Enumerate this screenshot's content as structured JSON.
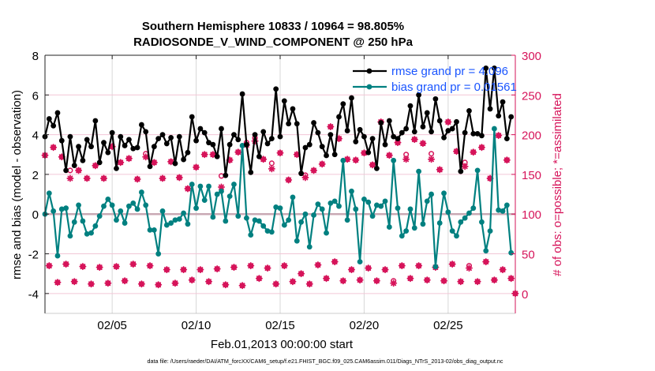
{
  "chart_data": {
    "type": "line",
    "title": [
      "Southern Hemisphere 10833 / 10964 = 98.805%",
      "RADIOSONDE_V_WIND_COMPONENT @ 250 hPa"
    ],
    "xlabel": "Feb.01,2013 00:00:00 start",
    "ylabel_left": "rmse and bias (model - observation)",
    "ylabel_right": "# of obs: o=possible; *=assimilated",
    "footer": "data file: /Users/raeder/DAI/ATM_forcXX/CAM6_setup/f.e21.FHIST_BGC.f09_025.CAM6assim.011/Diags_NTrS_2013-02/obs_diag_output.nc",
    "x_start_day": 1,
    "x_step_days": 0.25,
    "xlim_days": [
      1,
      29
    ],
    "xticks": [
      {
        "day": 5,
        "label": "02/05"
      },
      {
        "day": 10,
        "label": "02/10"
      },
      {
        "day": 15,
        "label": "02/15"
      },
      {
        "day": 20,
        "label": "02/20"
      },
      {
        "day": 25,
        "label": "02/25"
      }
    ],
    "ylim_left": [
      -5,
      8
    ],
    "yticks_left": [
      -4,
      -2,
      0,
      2,
      4,
      6,
      8
    ],
    "ylim_right": [
      -25,
      300
    ],
    "yticks_right": [
      0,
      50,
      100,
      150,
      200,
      250,
      300
    ],
    "legend": {
      "position": "top-right",
      "entries": [
        "rmse grand pr = 4.096",
        "bias grand pr = 0.01561"
      ]
    },
    "colors": {
      "rmse": "#000000",
      "bias": "#008080",
      "obs": "#d6145a",
      "legend_text": "#1a55ff",
      "zero_line": "#c9a9b4",
      "grid_v": "#d8d8d8",
      "grid_h": "#f2c6d6"
    },
    "series": [
      {
        "name": "rmse",
        "axis": "left",
        "values": [
          3.9,
          4.8,
          4.45,
          5.1,
          3.7,
          2.2,
          3.9,
          2.45,
          3.4,
          2.7,
          3.75,
          3.4,
          4.7,
          2.6,
          3.6,
          3.1,
          4.1,
          2.3,
          3.9,
          3.45,
          3.75,
          3.3,
          3.35,
          4.5,
          4.15,
          2.4,
          3.4,
          3.8,
          4.0,
          3.55,
          3.85,
          2.55,
          3.9,
          2.75,
          3.1,
          4.9,
          3.7,
          4.3,
          4.1,
          3.6,
          3.5,
          2.9,
          4.3,
          1.95,
          3.5,
          4.0,
          3.75,
          6.05,
          3.5,
          2.1,
          4.0,
          2.9,
          4.15,
          3.55,
          3.8,
          6.3,
          3.9,
          5.7,
          4.55,
          5.3,
          4.55,
          2.05,
          3.35,
          3.5,
          4.6,
          4.1,
          3.4,
          2.95,
          4.0,
          3.0,
          4.9,
          5.55,
          4.2,
          5.85,
          3.65,
          4.25,
          3.9,
          3.1,
          3.8,
          2.3,
          4.6,
          3.5,
          4.7,
          3.9,
          3.8,
          4.1,
          4.3,
          5.45,
          4.15,
          6.0,
          4.4,
          5.1,
          4.15,
          5.8,
          4.7,
          3.85,
          4.2,
          4.3,
          4.65,
          2.15,
          4.1,
          5.2,
          4.05,
          4.05,
          3.95,
          7.35,
          5.3,
          7.35,
          4.95,
          5.65,
          3.8,
          4.9
        ]
      },
      {
        "name": "bias",
        "axis": "left",
        "values": [
          0.0,
          1.05,
          0.15,
          -2.1,
          0.25,
          0.3,
          -1.1,
          -0.4,
          0.45,
          -0.35,
          -1.0,
          -0.95,
          -0.6,
          -0.1,
          0.4,
          0.75,
          0.45,
          -0.3,
          0.15,
          -0.45,
          0.4,
          0.55,
          0.25,
          1.1,
          0.45,
          -0.8,
          -0.8,
          -2.0,
          0.15,
          -0.55,
          -0.45,
          -0.3,
          -0.25,
          0.05,
          -0.5,
          1.5,
          0.3,
          1.4,
          0.7,
          1.4,
          -0.15,
          1.0,
          1.15,
          -0.35,
          0.9,
          1.5,
          -0.1,
          3.45,
          -0.2,
          -1.05,
          -0.3,
          -0.35,
          -0.6,
          -0.85,
          -0.9,
          0.35,
          0.3,
          -0.55,
          -0.3,
          0.85,
          -1.35,
          -0.4,
          0.0,
          -1.65,
          -0.05,
          0.5,
          0.25,
          -0.95,
          0.55,
          0.65,
          0.4,
          2.7,
          -0.3,
          1.15,
          0.25,
          -2.4,
          0.75,
          0.6,
          -0.1,
          0.45,
          0.4,
          0.65,
          -0.65,
          2.7,
          0.3,
          -1.1,
          -0.85,
          0.25,
          -0.7,
          2.15,
          -0.5,
          0.65,
          1.0,
          -2.65,
          -0.45,
          1.05,
          0.1,
          -0.85,
          -1.1,
          -0.4,
          -0.2,
          0.05,
          0.3,
          2.2,
          -0.4,
          -1.85,
          -0.85,
          4.3,
          0.2,
          0.15,
          0.45,
          -1.95
        ]
      },
      {
        "name": "obs_possible",
        "axis": "right",
        "values": [
          174,
          35,
          184,
          14,
          172,
          37,
          155,
          15,
          155,
          34,
          145,
          12,
          161,
          33,
          145,
          13,
          185,
          34,
          165,
          16,
          170,
          37,
          144,
          12,
          176,
          35,
          165,
          11,
          145,
          30,
          166,
          13,
          146,
          30,
          132,
          17,
          159,
          30,
          175,
          15,
          175,
          31,
          148,
          11,
          168,
          33,
          178,
          10,
          190,
          35,
          196,
          19,
          169,
          32,
          164,
          12,
          177,
          35,
          143,
          15,
          175,
          25,
          149,
          12,
          155,
          36,
          163,
          19,
          210,
          40,
          195,
          16,
          169,
          30,
          168,
          17,
          177,
          32,
          162,
          16,
          216,
          30,
          174,
          16,
          190,
          35,
          175,
          19,
          194,
          35,
          189,
          17,
          176,
          33,
          156,
          16,
          216,
          37,
          179,
          15,
          165,
          35,
          178,
          15,
          184,
          40,
          145,
          17,
          199,
          30,
          168,
          19,
          0
        ]
      },
      {
        "name": "obs_assimilated",
        "axis": "right",
        "values": [
          174,
          35,
          184,
          14,
          172,
          37,
          145,
          15,
          155,
          34,
          145,
          12,
          161,
          33,
          145,
          13,
          185,
          34,
          165,
          16,
          170,
          37,
          144,
          12,
          172,
          35,
          165,
          11,
          145,
          30,
          166,
          13,
          146,
          30,
          132,
          17,
          159,
          30,
          175,
          15,
          175,
          31,
          134,
          11,
          168,
          33,
          178,
          10,
          187,
          35,
          192,
          19,
          169,
          32,
          157,
          12,
          177,
          35,
          143,
          15,
          175,
          25,
          146,
          12,
          155,
          36,
          163,
          19,
          210,
          40,
          195,
          16,
          169,
          30,
          168,
          17,
          177,
          32,
          162,
          16,
          216,
          30,
          174,
          13,
          190,
          35,
          169,
          19,
          194,
          35,
          189,
          17,
          169,
          33,
          156,
          16,
          216,
          37,
          179,
          15,
          160,
          32,
          178,
          15,
          184,
          40,
          145,
          17,
          199,
          30,
          168,
          19,
          0
        ]
      }
    ]
  }
}
